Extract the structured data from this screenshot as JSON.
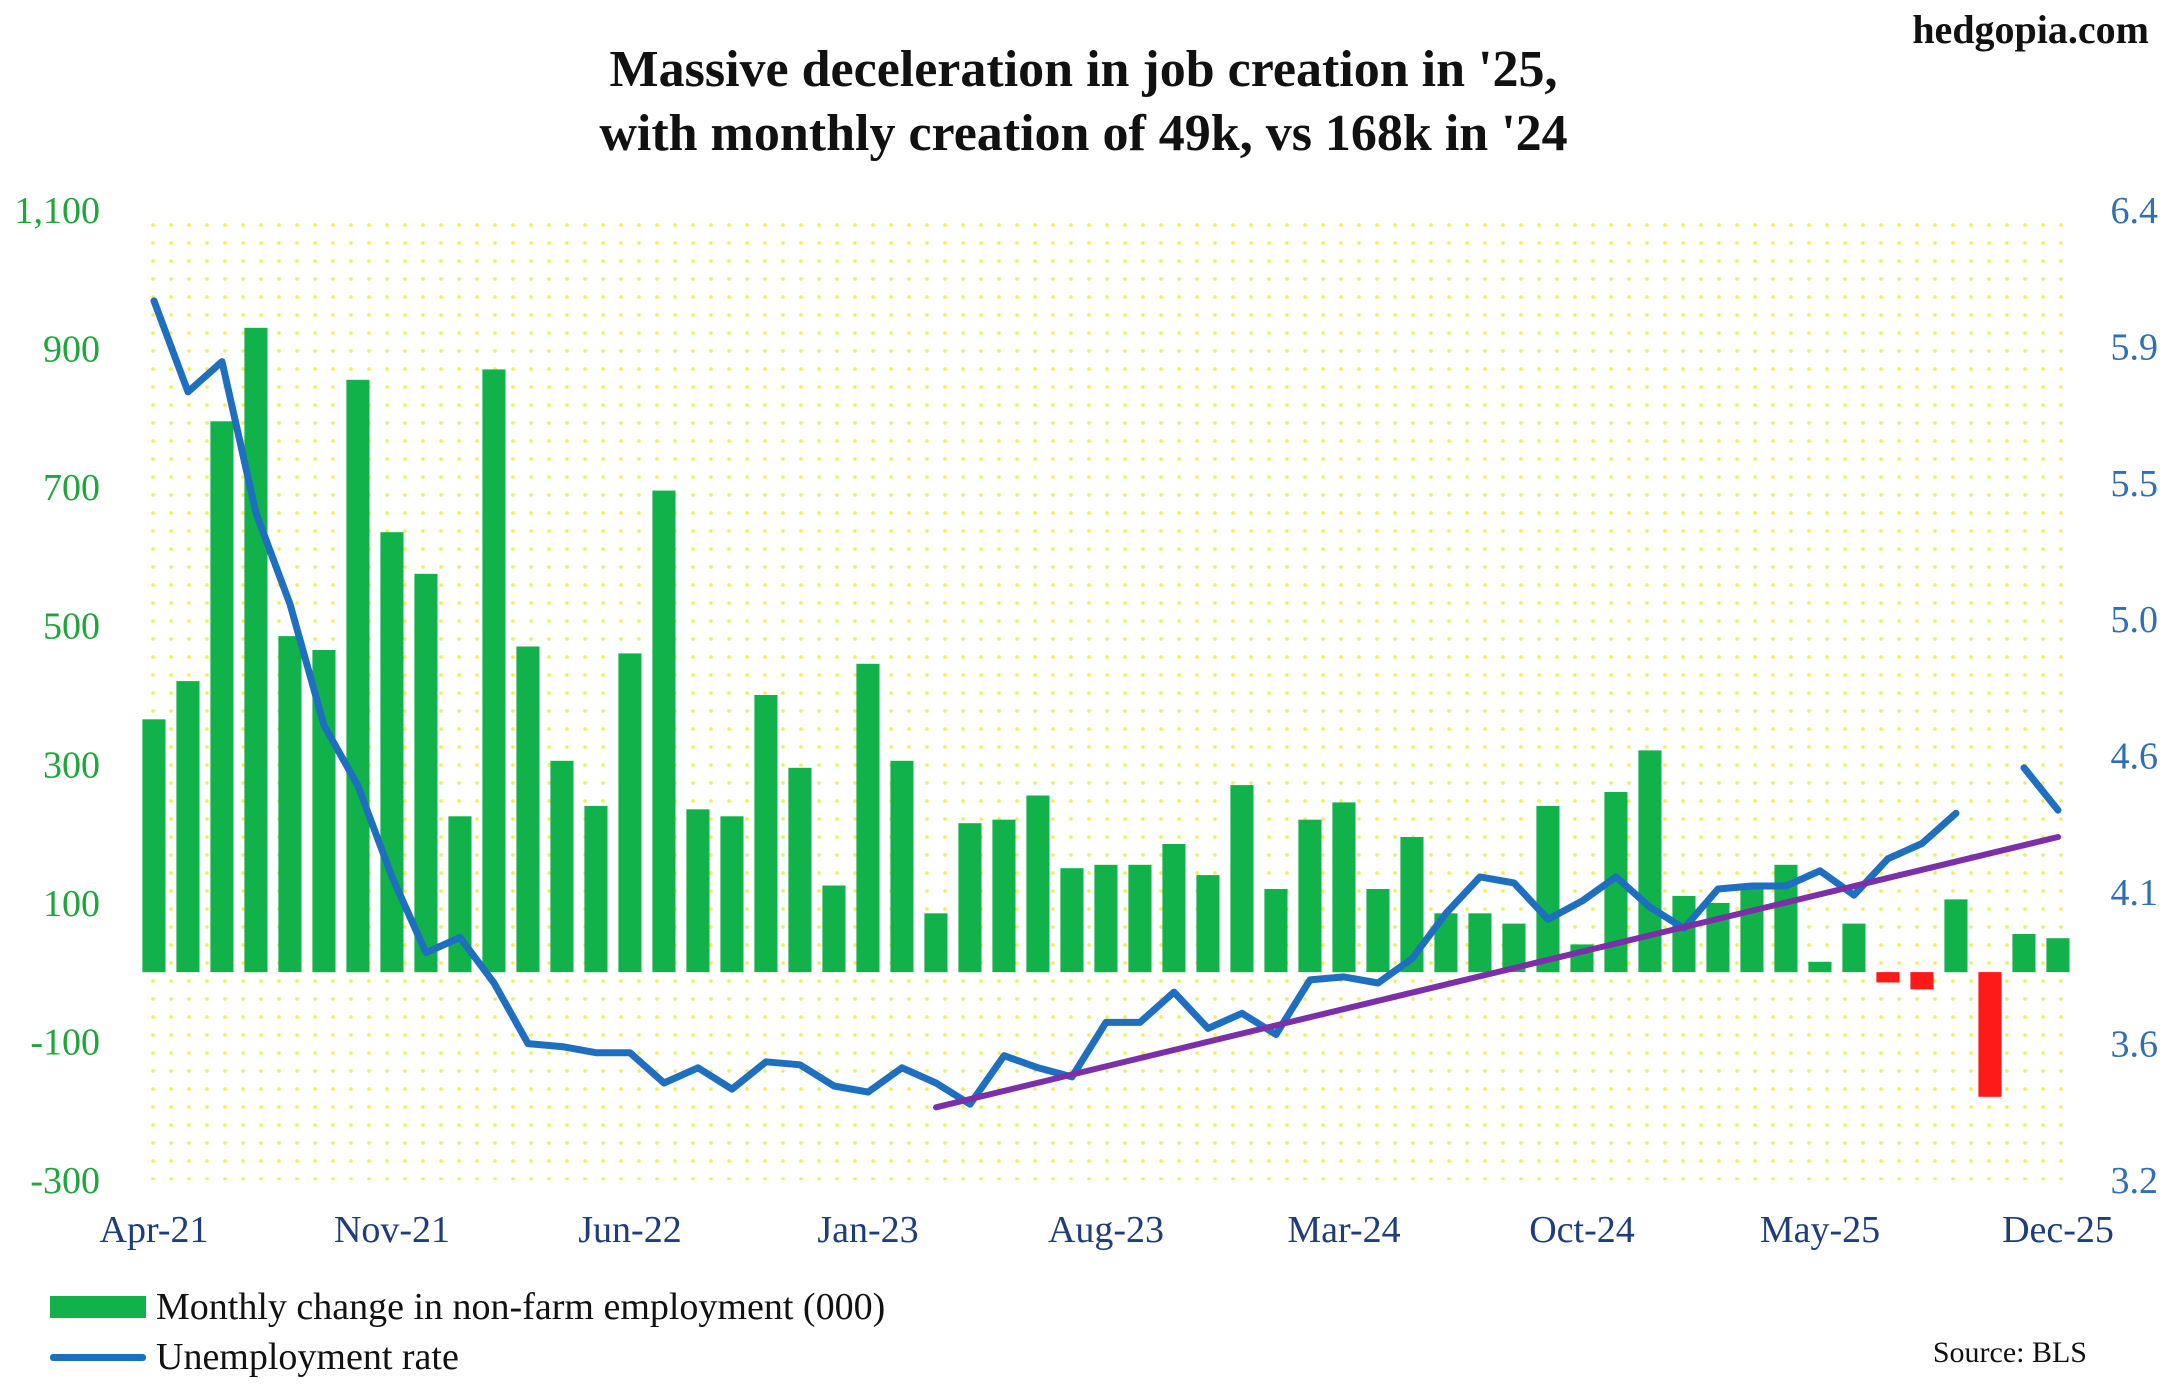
{
  "brand": "hedgopia.com",
  "source": "Source: BLS",
  "chart_data": {
    "type": "bar",
    "title": [
      "Massive deceleration in job creation in '25,",
      "with monthly creation of 49k, vs 168k in '24"
    ],
    "left_axis": {
      "ylim": [
        -300,
        1100
      ],
      "ticks": [
        "1,100",
        "900",
        "700",
        "500",
        "300",
        "100",
        "-100",
        "-300"
      ],
      "values": [
        1100,
        900,
        700,
        500,
        300,
        100,
        -100,
        -300
      ]
    },
    "right_axis": {
      "ylim": [
        3.2,
        6.4
      ],
      "ticks": [
        "6.4",
        "5.9",
        "5.5",
        "5.0",
        "4.6",
        "4.1",
        "3.6",
        "3.2"
      ],
      "values": [
        6.4,
        5.95,
        5.5,
        5.05,
        4.6,
        4.15,
        3.65,
        3.2
      ]
    },
    "x_ticks": [
      {
        "label": "Apr-21",
        "index": 0
      },
      {
        "label": "Nov-21",
        "index": 7
      },
      {
        "label": "Jun-22",
        "index": 14
      },
      {
        "label": "Jan-23",
        "index": 21
      },
      {
        "label": "Aug-23",
        "index": 28
      },
      {
        "label": "Mar-24",
        "index": 35
      },
      {
        "label": "Oct-24",
        "index": 42
      },
      {
        "label": "May-25",
        "index": 49
      },
      {
        "label": "Dec-25",
        "index": 56
      }
    ],
    "series": [
      {
        "name": "Monthly change in non-farm employment (000)",
        "type": "bar",
        "axis": "left",
        "color_positive": "#12b24a",
        "color_negative": "#ff1a1a",
        "values": [
          365,
          420,
          795,
          930,
          485,
          465,
          855,
          635,
          575,
          225,
          870,
          470,
          305,
          240,
          460,
          695,
          235,
          225,
          400,
          295,
          125,
          445,
          305,
          85,
          215,
          220,
          255,
          150,
          155,
          155,
          185,
          140,
          270,
          120,
          220,
          245,
          120,
          195,
          85,
          85,
          70,
          240,
          40,
          260,
          320,
          110,
          100,
          120,
          155,
          15,
          70,
          -15,
          -25,
          105,
          -180,
          55,
          49
        ]
      },
      {
        "name": "Unemployment rate",
        "type": "line",
        "axis": "right",
        "color": "#1f6fc0",
        "values": [
          6.1,
          5.8,
          5.9,
          5.4,
          5.1,
          4.7,
          4.5,
          4.2,
          3.95,
          4.0,
          3.85,
          3.65,
          3.64,
          3.62,
          3.62,
          3.52,
          3.57,
          3.5,
          3.59,
          3.58,
          3.51,
          3.49,
          3.57,
          3.52,
          3.45,
          3.61,
          3.57,
          3.54,
          3.72,
          3.72,
          3.82,
          3.7,
          3.75,
          3.68,
          3.86,
          3.87,
          3.85,
          3.93,
          4.08,
          4.2,
          4.18,
          4.06,
          4.12,
          4.2,
          4.1,
          4.03,
          4.16,
          4.17,
          4.17,
          4.22,
          4.14,
          4.26,
          4.31,
          4.41,
          null,
          4.56,
          4.42
        ]
      },
      {
        "name": "Trend line",
        "type": "line",
        "axis": "left",
        "color": "#7b2fa8",
        "values": [
          [
            23,
            -195
          ],
          [
            56,
            195
          ]
        ]
      }
    ],
    "legend": [
      "Monthly change in non-farm employment (000)",
      "Unemployment rate"
    ]
  }
}
